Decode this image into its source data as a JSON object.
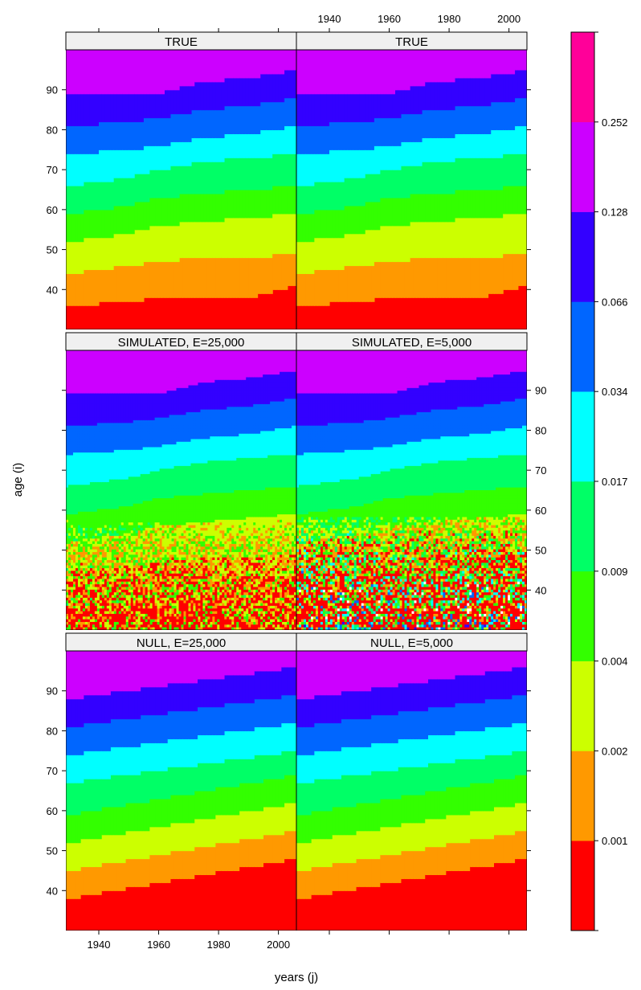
{
  "chart_data": {
    "type": "heatmap",
    "title": "",
    "xlabel": "years (j)",
    "ylabel": "age (i)",
    "xlim": [
      1929,
      2006
    ],
    "ylim": [
      30,
      100
    ],
    "x_ticks": [
      1940,
      1960,
      1980,
      2000
    ],
    "y_ticks": [
      40,
      50,
      60,
      70,
      80,
      90
    ],
    "panels": [
      {
        "title": "TRUE",
        "kind": "true",
        "noise": 0
      },
      {
        "title": "TRUE",
        "kind": "true",
        "noise": 0
      },
      {
        "title": "SIMULATED, E=25,000",
        "kind": "true",
        "noise": 1
      },
      {
        "title": "SIMULATED, E=5,000",
        "kind": "true",
        "noise": 2
      },
      {
        "title": "NULL, E=25,000",
        "kind": "null",
        "noise": 0
      },
      {
        "title": "NULL, E=5,000",
        "kind": "null",
        "noise": 0
      }
    ],
    "colorbar": {
      "colors": [
        "#FF0000",
        "#FF9900",
        "#CCFF00",
        "#33FF00",
        "#00FF66",
        "#00FFFF",
        "#0066FF",
        "#3300FF",
        "#CC00FF",
        "#FF0099"
      ],
      "tick_labels": [
        "0.001",
        "0.002",
        "0.004",
        "0.009",
        "0.017",
        "0.034",
        "0.066",
        "0.128",
        "0.252"
      ]
    },
    "band_boundaries_true": {
      "years": [
        1930,
        1950,
        1960,
        1975,
        1990,
        2006
      ],
      "boundaries": [
        [
          36,
          37,
          38,
          38,
          38,
          41
        ],
        [
          44,
          46,
          47,
          48,
          48,
          49
        ],
        [
          52,
          54,
          56,
          57,
          58,
          59
        ],
        [
          59,
          61,
          63,
          64,
          65,
          66
        ],
        [
          66,
          68,
          70,
          72,
          73,
          74
        ],
        [
          74,
          75,
          76,
          78,
          79,
          81
        ],
        [
          81,
          82,
          83,
          85,
          86,
          88
        ],
        [
          89,
          89,
          89,
          92,
          93,
          95
        ]
      ]
    },
    "band_boundaries_null": {
      "years": [
        1930,
        2006
      ],
      "boundaries": [
        [
          33,
          41
        ],
        [
          38,
          48
        ],
        [
          45,
          55
        ],
        [
          52,
          62
        ],
        [
          59,
          69
        ],
        [
          67,
          75
        ],
        [
          74,
          82
        ],
        [
          81,
          89
        ],
        [
          88,
          96
        ]
      ]
    }
  }
}
